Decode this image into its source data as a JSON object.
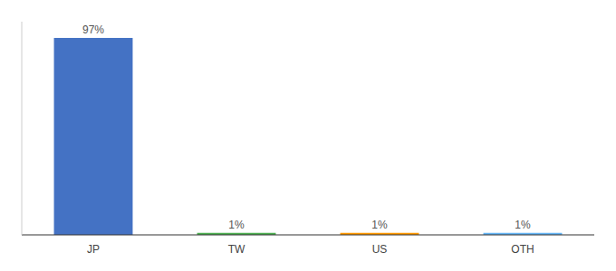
{
  "chart_data": {
    "type": "bar",
    "categories": [
      "JP",
      "TW",
      "US",
      "OTH"
    ],
    "values": [
      97,
      1,
      1,
      1
    ],
    "value_labels": [
      "97%",
      "1%",
      "1%",
      "1%"
    ],
    "colors": [
      "#4472c4",
      "#4caf50",
      "#ff9800",
      "#64b5f6"
    ],
    "ylim": [
      0,
      105
    ],
    "data_labels": true,
    "tick_labels": "x",
    "grid": false
  }
}
